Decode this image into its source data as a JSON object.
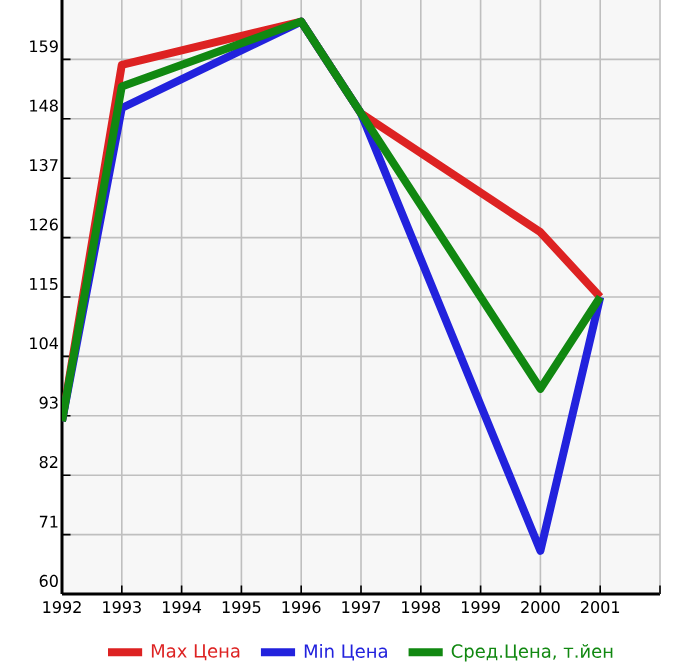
{
  "chart_data": {
    "type": "line",
    "x": [
      1992,
      1993,
      1996,
      1997,
      2000,
      2001
    ],
    "series": [
      {
        "name": "Max Цена",
        "color": "#dd2222",
        "values": [
          92,
          158,
          166,
          149,
          127,
          115
        ]
      },
      {
        "name": "Min Цена",
        "color": "#2222dd",
        "values": [
          92,
          150,
          166,
          149,
          68,
          115
        ]
      },
      {
        "name": "Сред.Цена, т.йен",
        "color": "#118811",
        "values": [
          92,
          154,
          166,
          149,
          98,
          115
        ]
      }
    ],
    "xlim": [
      1992,
      2002
    ],
    "xticks": [
      1992,
      1993,
      1994,
      1995,
      1996,
      1997,
      1998,
      1999,
      2000,
      2001
    ],
    "ylim": [
      60,
      170
    ],
    "yticks": [
      60,
      71,
      82,
      93,
      104,
      115,
      126,
      137,
      148,
      159
    ],
    "grid": true,
    "legend": "bottom",
    "marker": "none",
    "line_style": "solid"
  }
}
